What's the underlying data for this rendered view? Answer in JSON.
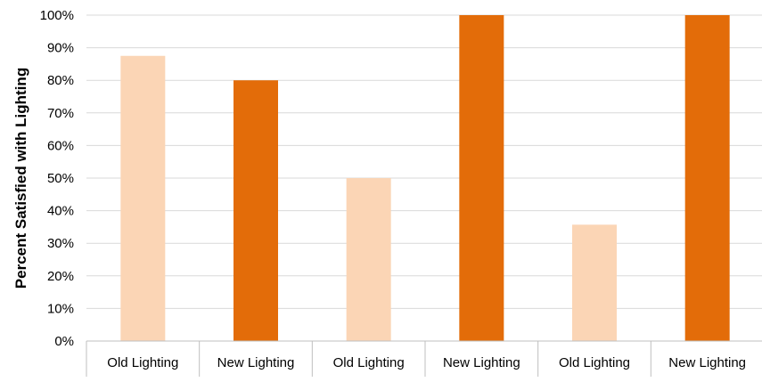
{
  "chart_data": {
    "type": "bar",
    "ylabel": "Percent Satisfied with Lighting",
    "xlabel": "",
    "title": "",
    "categories": [
      "Old Lighting",
      "New Lighting",
      "Old Lighting",
      "New Lighting",
      "Old Lighting",
      "New Lighting"
    ],
    "values": [
      87.5,
      80,
      50,
      100,
      35.7,
      100
    ],
    "ylim": [
      0,
      100
    ],
    "yticks": [
      0,
      10,
      20,
      30,
      40,
      50,
      60,
      70,
      80,
      90,
      100
    ],
    "ytick_labels": [
      "0%",
      "10%",
      "20%",
      "30%",
      "40%",
      "50%",
      "60%",
      "70%",
      "80%",
      "90%",
      "100%"
    ],
    "grid": true,
    "legend": "none",
    "colors": {
      "old": "#fbd5b5",
      "new": "#e36c09",
      "grid": "#d9d9d9",
      "axis": "#bfbfbf"
    }
  }
}
